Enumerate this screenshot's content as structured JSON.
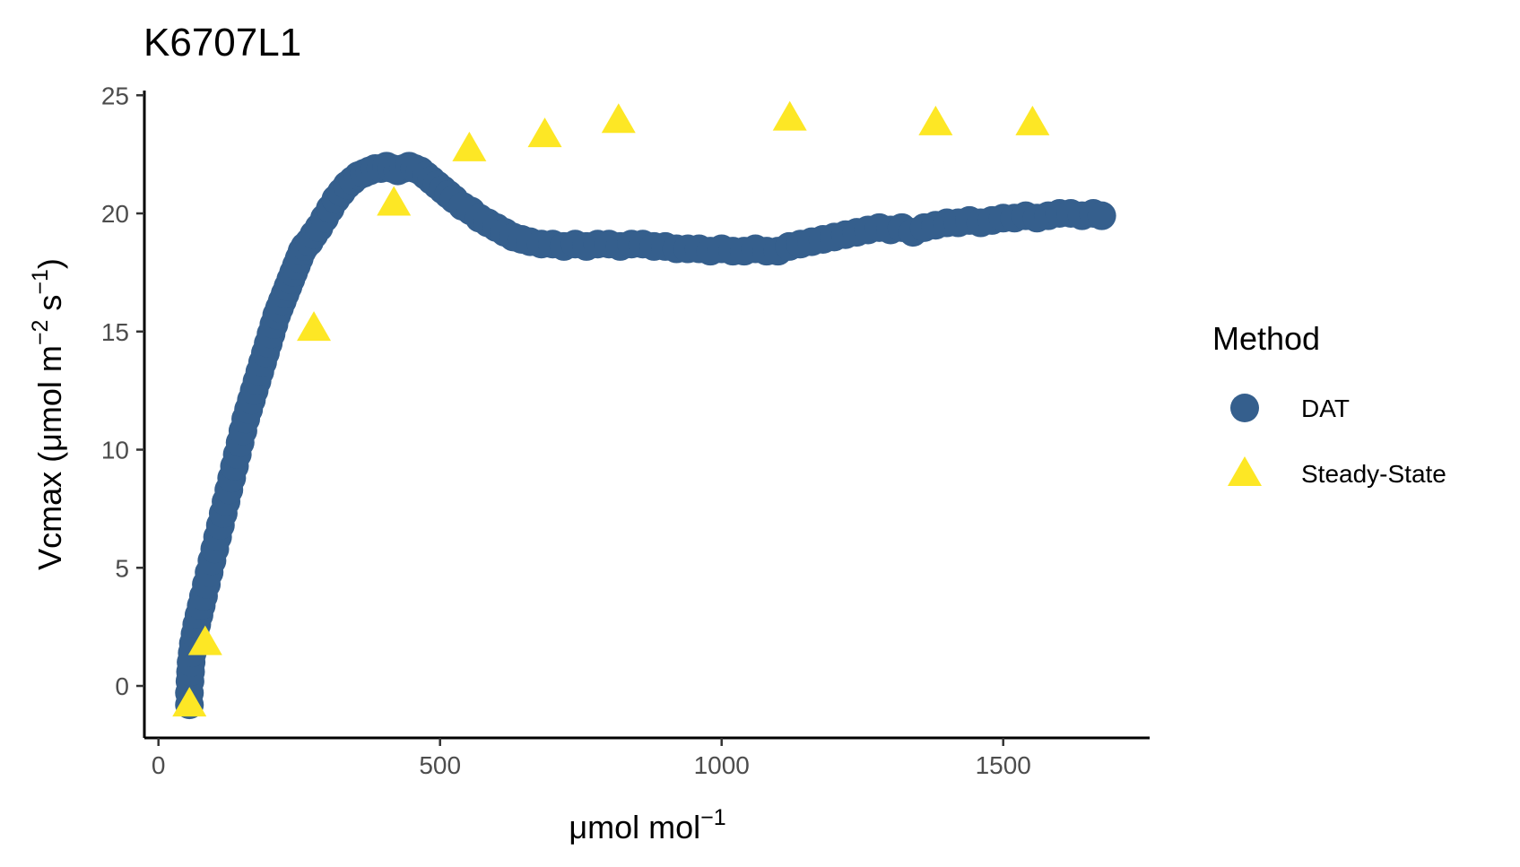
{
  "chart_data": {
    "type": "scatter",
    "title": "K6707L1",
    "xlabel": "μmol mol",
    "xlabel_sup": "−1",
    "ylabel_parts": [
      "Vcmax (μmol m",
      "−2",
      " s",
      "−1",
      ")"
    ],
    "xlim": [
      -25,
      1760
    ],
    "ylim": [
      -2.2,
      25.2
    ],
    "x_ticks": [
      0,
      500,
      1000,
      1500
    ],
    "y_ticks": [
      0,
      5,
      10,
      15,
      20,
      25
    ],
    "x_tick_labels": [
      "0",
      "500",
      "1000",
      "1500"
    ],
    "y_tick_labels": [
      "0",
      "5",
      "10",
      "15",
      "20",
      "25"
    ],
    "grid": false,
    "legend": {
      "title": "Method",
      "position": "right",
      "entries": [
        "DAT",
        "Steady-State"
      ]
    },
    "colors": {
      "DAT": "#355f8d",
      "Steady-State": "#fde725"
    },
    "series": [
      {
        "name": "DAT",
        "marker": "circle",
        "points": [
          [
            55,
            -0.8
          ],
          [
            55,
            -0.3
          ],
          [
            56,
            0.2
          ],
          [
            57,
            0.6
          ],
          [
            58,
            1.0
          ],
          [
            60,
            1.4
          ],
          [
            62,
            1.8
          ],
          [
            65,
            2.2
          ],
          [
            68,
            2.6
          ],
          [
            72,
            3.0
          ],
          [
            76,
            3.4
          ],
          [
            80,
            3.8
          ],
          [
            85,
            4.3
          ],
          [
            90,
            4.8
          ],
          [
            95,
            5.3
          ],
          [
            100,
            5.8
          ],
          [
            105,
            6.3
          ],
          [
            110,
            6.8
          ],
          [
            115,
            7.3
          ],
          [
            120,
            7.8
          ],
          [
            125,
            8.3
          ],
          [
            130,
            8.8
          ],
          [
            135,
            9.3
          ],
          [
            140,
            9.8
          ],
          [
            145,
            10.3
          ],
          [
            150,
            10.8
          ],
          [
            155,
            11.3
          ],
          [
            160,
            11.7
          ],
          [
            165,
            12.1
          ],
          [
            170,
            12.5
          ],
          [
            175,
            12.9
          ],
          [
            180,
            13.3
          ],
          [
            185,
            13.7
          ],
          [
            190,
            14.1
          ],
          [
            195,
            14.5
          ],
          [
            200,
            14.9
          ],
          [
            205,
            15.3
          ],
          [
            210,
            15.7
          ],
          [
            215,
            16.0
          ],
          [
            220,
            16.3
          ],
          [
            225,
            16.6
          ],
          [
            230,
            16.9
          ],
          [
            235,
            17.2
          ],
          [
            240,
            17.5
          ],
          [
            245,
            17.8
          ],
          [
            250,
            18.1
          ],
          [
            255,
            18.4
          ],
          [
            260,
            18.6
          ],
          [
            268,
            18.8
          ],
          [
            276,
            19.1
          ],
          [
            285,
            19.4
          ],
          [
            295,
            19.8
          ],
          [
            305,
            20.2
          ],
          [
            315,
            20.6
          ],
          [
            325,
            20.9
          ],
          [
            335,
            21.2
          ],
          [
            345,
            21.4
          ],
          [
            355,
            21.6
          ],
          [
            365,
            21.7
          ],
          [
            375,
            21.8
          ],
          [
            385,
            21.9
          ],
          [
            395,
            21.9
          ],
          [
            405,
            22.0
          ],
          [
            415,
            21.9
          ],
          [
            425,
            21.8
          ],
          [
            435,
            21.9
          ],
          [
            445,
            22.0
          ],
          [
            455,
            21.9
          ],
          [
            465,
            21.8
          ],
          [
            475,
            21.6
          ],
          [
            485,
            21.4
          ],
          [
            495,
            21.2
          ],
          [
            505,
            21.0
          ],
          [
            515,
            20.8
          ],
          [
            525,
            20.6
          ],
          [
            540,
            20.3
          ],
          [
            555,
            20.1
          ],
          [
            570,
            19.8
          ],
          [
            585,
            19.6
          ],
          [
            600,
            19.4
          ],
          [
            615,
            19.2
          ],
          [
            630,
            19.0
          ],
          [
            645,
            18.9
          ],
          [
            660,
            18.8
          ],
          [
            680,
            18.7
          ],
          [
            700,
            18.7
          ],
          [
            720,
            18.6
          ],
          [
            740,
            18.7
          ],
          [
            760,
            18.6
          ],
          [
            780,
            18.7
          ],
          [
            800,
            18.7
          ],
          [
            820,
            18.6
          ],
          [
            840,
            18.7
          ],
          [
            860,
            18.7
          ],
          [
            880,
            18.6
          ],
          [
            900,
            18.6
          ],
          [
            920,
            18.5
          ],
          [
            940,
            18.5
          ],
          [
            960,
            18.5
          ],
          [
            980,
            18.4
          ],
          [
            1000,
            18.5
          ],
          [
            1020,
            18.4
          ],
          [
            1040,
            18.4
          ],
          [
            1060,
            18.5
          ],
          [
            1080,
            18.4
          ],
          [
            1100,
            18.4
          ],
          [
            1120,
            18.6
          ],
          [
            1140,
            18.7
          ],
          [
            1160,
            18.8
          ],
          [
            1180,
            18.9
          ],
          [
            1200,
            19.0
          ],
          [
            1220,
            19.1
          ],
          [
            1240,
            19.2
          ],
          [
            1260,
            19.3
          ],
          [
            1280,
            19.4
          ],
          [
            1300,
            19.3
          ],
          [
            1320,
            19.4
          ],
          [
            1340,
            19.2
          ],
          [
            1360,
            19.4
          ],
          [
            1380,
            19.5
          ],
          [
            1400,
            19.6
          ],
          [
            1420,
            19.6
          ],
          [
            1440,
            19.7
          ],
          [
            1460,
            19.6
          ],
          [
            1480,
            19.7
          ],
          [
            1500,
            19.8
          ],
          [
            1520,
            19.8
          ],
          [
            1540,
            19.9
          ],
          [
            1560,
            19.8
          ],
          [
            1580,
            19.9
          ],
          [
            1600,
            20.0
          ],
          [
            1620,
            20.0
          ],
          [
            1640,
            19.9
          ],
          [
            1660,
            20.0
          ],
          [
            1675,
            19.9
          ]
        ]
      },
      {
        "name": "Steady-State",
        "marker": "triangle",
        "points": [
          [
            55,
            -0.8
          ],
          [
            83,
            1.8
          ],
          [
            276,
            15.1
          ],
          [
            418,
            20.4
          ],
          [
            552,
            22.7
          ],
          [
            686,
            23.3
          ],
          [
            817,
            23.9
          ],
          [
            1121,
            24.0
          ],
          [
            1380,
            23.8
          ],
          [
            1552,
            23.8
          ]
        ]
      }
    ]
  }
}
